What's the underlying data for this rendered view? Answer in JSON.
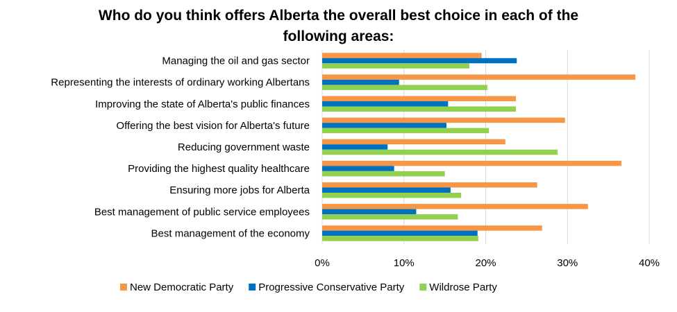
{
  "chart_data": {
    "type": "bar",
    "orientation": "horizontal",
    "title_lines": [
      "Who do you think offers Alberta the overall best choice in each of the",
      "following areas:"
    ],
    "categories": [
      "Managing the oil and gas sector",
      "Representing the interests of ordinary working Albertans",
      "Improving the state of Alberta's public finances",
      "Offering the best vision for Alberta's future",
      "Reducing government waste",
      "Providing the highest quality healthcare",
      "Ensuring more jobs for Alberta",
      "Best management of public service employees",
      "Best management of the economy"
    ],
    "series": [
      {
        "name": "New Democratic Party",
        "color": "#f79646",
        "values": [
          19.5,
          38.3,
          23.7,
          29.7,
          22.4,
          36.6,
          26.3,
          32.5,
          26.9
        ]
      },
      {
        "name": "Progressive Conservative Party",
        "color": "#0070c0",
        "values": [
          23.8,
          9.4,
          15.4,
          15.2,
          8.0,
          8.8,
          15.7,
          11.5,
          19.0
        ]
      },
      {
        "name": "Wildrose Party",
        "color": "#92d050",
        "values": [
          18.0,
          20.2,
          23.7,
          20.4,
          28.8,
          15.0,
          17.0,
          16.6,
          19.1
        ]
      }
    ],
    "xlim": [
      0,
      40
    ],
    "xticks": [
      "0%",
      "10%",
      "20%",
      "30%",
      "40%"
    ],
    "grid": true,
    "legend_position": "bottom"
  }
}
